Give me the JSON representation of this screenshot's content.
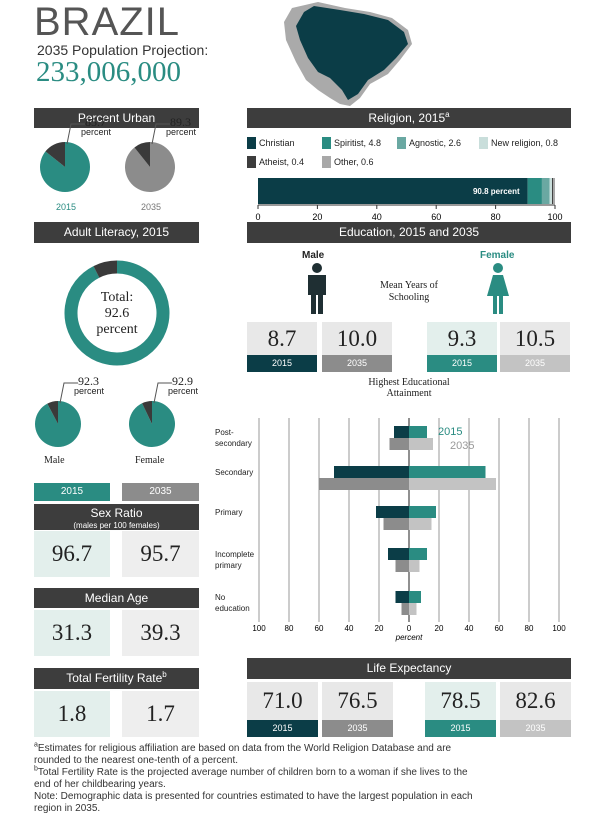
{
  "header": {
    "country": "BRAZIL",
    "projection_label": "2035 Population Projection:",
    "population": {
      "value": 233006000,
      "label": "233,006,000"
    }
  },
  "unit_label": "percent",
  "years": [
    "2015",
    "2035"
  ],
  "percent_urban": {
    "title": "Percent Urban",
    "values": [
      85.7,
      89.3
    ],
    "colors": [
      "#2a8c82",
      "#8c8c8c"
    ]
  },
  "religion": {
    "title": "Religion, 2015",
    "title_note": "a",
    "legend_labels": [
      "Christian",
      "Spiritist, 4.8",
      "Agnostic, 2.6",
      "New religion, 0.8",
      "Atheist, 0.4",
      "Other, 0.6"
    ],
    "values": [
      90.8,
      4.8,
      2.6,
      0.8,
      0.4,
      0.6
    ],
    "value_labels": [
      "90.8 percent",
      null,
      null,
      null,
      null,
      null
    ],
    "colors": [
      "#0b3d47",
      "#2a8c82",
      "#6aa8a2",
      "#c9dedb",
      "#3d3d3d",
      "#a8a8a8"
    ],
    "xlim": [
      0,
      100
    ],
    "xticks": [
      0,
      20,
      40,
      60,
      80,
      100
    ]
  },
  "adult_literacy": {
    "title": "Adult Literacy, 2015",
    "total_label": "Total:",
    "total": 92.6,
    "groups": [
      "Male",
      "Female"
    ],
    "values": [
      92.3,
      92.9
    ]
  },
  "sex_ratio": {
    "title": "Sex Ratio",
    "subtitle": "(males per 100 females)",
    "values": [
      96.7,
      95.7
    ]
  },
  "median_age": {
    "title": "Median Age",
    "values": [
      31.3,
      39.3
    ]
  },
  "fertility": {
    "title": "Total Fertility Rate",
    "title_note": "b",
    "values": [
      1.8,
      1.7
    ]
  },
  "education": {
    "title": "Education, 2015 and 2035",
    "groups": [
      "Male",
      "Female"
    ],
    "schooling_label": "Mean Years of Schooling",
    "schooling": [
      {
        "values": [
          8.7,
          10
        ],
        "value_labels": [
          "8.7",
          "10.0"
        ]
      },
      {
        "values": [
          9.3,
          10.5
        ]
      }
    ],
    "attainment": {
      "title": "Highest Educational Attainment",
      "categories": [
        "Post-secondary",
        "Secondary",
        "Primary",
        "Incomplete primary",
        "No education"
      ],
      "male_series": [
        {
          "color": "#0b3d47",
          "values": [
            10,
            50,
            22,
            14,
            9
          ]
        },
        {
          "color": "#8c8c8c",
          "values": [
            13,
            60,
            17,
            9,
            5
          ]
        }
      ],
      "female_series": [
        {
          "color": "#2a8c82",
          "values": [
            12,
            51,
            18,
            12,
            8
          ]
        },
        {
          "color": "#c3c3c3",
          "values": [
            16,
            58,
            15,
            7,
            5
          ]
        }
      ],
      "xlim": [
        -100,
        100
      ],
      "xticks": [
        {
          "value": -100,
          "label": "100"
        },
        {
          "value": -80,
          "label": "80"
        },
        {
          "value": -60,
          "label": "60"
        },
        {
          "value": -40,
          "label": "40"
        },
        {
          "value": -20,
          "label": "20"
        },
        0,
        20,
        40,
        60,
        80,
        100
      ],
      "xlabel": "percent",
      "grid": true
    }
  },
  "life_expectancy": {
    "title": "Life Expectancy",
    "male": {
      "values": [
        71,
        76.5
      ],
      "value_labels": [
        "71.0",
        "76.5"
      ]
    },
    "female": {
      "values": [
        78.5,
        82.6
      ]
    }
  },
  "footnotes": [
    {
      "mark": "a",
      "text": "Estimates for religious affiliation are based on data from the World Religion Database and are rounded to the nearest one-tenth of a percent."
    },
    {
      "mark": "b",
      "text": "Total Fertility Rate is the projected average number of children born to a woman if she lives to the end of her childbearing years."
    },
    {
      "text": "Note: Demographic data is presented for countries estimated to have the largest population in each region in 2035."
    }
  ]
}
